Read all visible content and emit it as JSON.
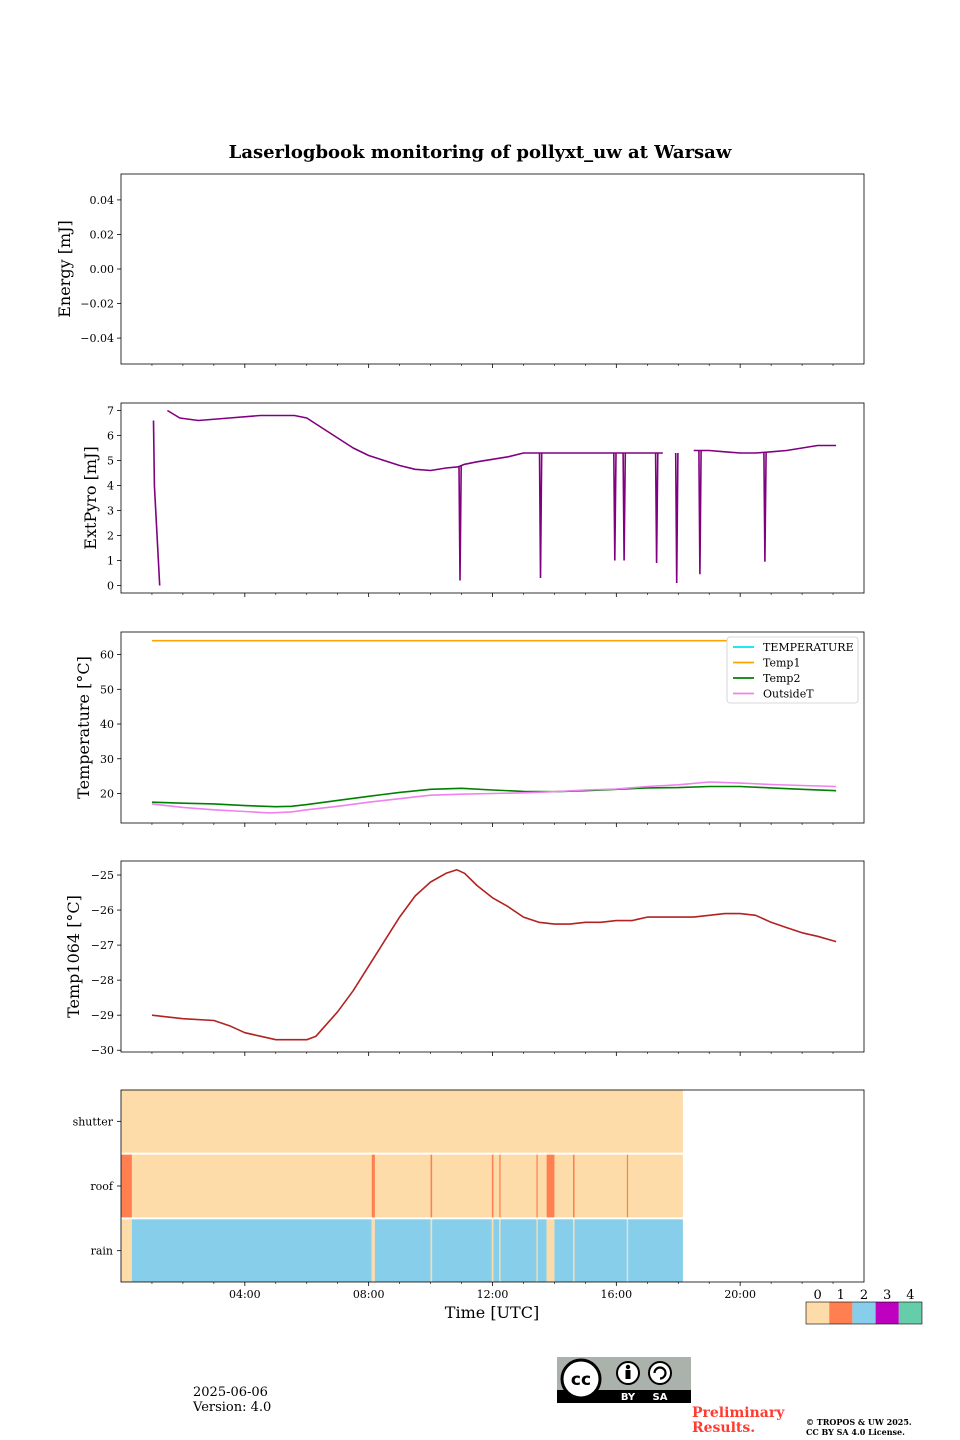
{
  "title": "Laserlogbook monitoring of pollyxt_uw at Warsaw",
  "xaxis": {
    "label": "Time [UTC]",
    "range_hours": [
      0,
      24
    ],
    "ticks": [
      {
        "h": 4,
        "label": "04:00"
      },
      {
        "h": 8,
        "label": "08:00"
      },
      {
        "h": 12,
        "label": "12:00"
      },
      {
        "h": 16,
        "label": "16:00"
      },
      {
        "h": 20,
        "label": "20:00"
      }
    ]
  },
  "chart_data": [
    {
      "type": "line",
      "id": "energy",
      "ylabel": "Energy [mJ]",
      "ylim": [
        -0.055,
        0.055
      ],
      "yticks": [
        {
          "v": 0.04,
          "label": "0.04"
        },
        {
          "v": 0.02,
          "label": "0.02"
        },
        {
          "v": 0.0,
          "label": "0.00"
        },
        {
          "v": -0.02,
          "label": "−0.02"
        },
        {
          "v": -0.04,
          "label": "−0.04"
        }
      ],
      "series": []
    },
    {
      "type": "line",
      "id": "extpyro",
      "ylabel": "ExtPyro [mJ]",
      "ylim": [
        -0.3,
        7.3
      ],
      "yticks": [
        {
          "v": 0,
          "label": "0"
        },
        {
          "v": 1,
          "label": "1"
        },
        {
          "v": 2,
          "label": "2"
        },
        {
          "v": 3,
          "label": "3"
        },
        {
          "v": 4,
          "label": "4"
        },
        {
          "v": 5,
          "label": "5"
        },
        {
          "v": 6,
          "label": "6"
        },
        {
          "v": 7,
          "label": "7"
        }
      ],
      "series": [
        {
          "color": "#800080",
          "x": [
            1.05,
            1.08,
            1.25,
            1.5,
            1.5,
            1.9,
            2.5,
            3.5,
            4.5,
            5.2,
            5.6,
            6.0,
            6.5,
            7.0,
            7.5,
            8.0,
            8.5,
            9.0,
            9.5,
            10.0,
            10.5,
            10.9,
            11.1,
            11.5,
            12.0,
            12.5,
            13.0,
            13.5,
            14.0,
            14.5,
            15.0,
            15.5,
            16.0,
            16.5,
            17.0,
            17.5,
            18.0,
            18.5,
            19.0,
            19.5,
            20.0,
            20.5,
            21.0,
            21.5,
            22.0,
            22.5,
            23.1
          ],
          "y": [
            6.6,
            4.0,
            0.0,
            null,
            7.0,
            6.7,
            6.6,
            6.7,
            6.8,
            6.8,
            6.8,
            6.7,
            6.3,
            5.9,
            5.5,
            5.2,
            5.0,
            4.8,
            4.65,
            4.6,
            4.7,
            4.75,
            4.85,
            4.95,
            5.05,
            5.15,
            5.3,
            5.3,
            5.3,
            5.3,
            5.3,
            5.3,
            5.3,
            5.3,
            5.3,
            5.3,
            null,
            5.4,
            5.4,
            5.35,
            5.3,
            5.3,
            5.35,
            5.4,
            5.5,
            5.6,
            5.6
          ]
        }
      ],
      "dips": [
        {
          "x": 10.95,
          "y": 0.2
        },
        {
          "x": 13.55,
          "y": 0.3
        },
        {
          "x": 15.95,
          "y": 1.0
        },
        {
          "x": 16.25,
          "y": 1.0
        },
        {
          "x": 17.3,
          "y": 0.9
        },
        {
          "x": 17.95,
          "y": 0.1
        },
        {
          "x": 18.7,
          "y": 0.45
        },
        {
          "x": 20.8,
          "y": 0.95
        }
      ]
    },
    {
      "type": "line",
      "id": "temperature",
      "ylabel": "Temperature [°C]",
      "ylim": [
        11.5,
        66.5
      ],
      "yticks": [
        {
          "v": 20,
          "label": "20"
        },
        {
          "v": 30,
          "label": "30"
        },
        {
          "v": 40,
          "label": "40"
        },
        {
          "v": 50,
          "label": "50"
        },
        {
          "v": 60,
          "label": "60"
        }
      ],
      "legend_position": "upper right",
      "series": [
        {
          "name": "TEMPERATURE",
          "color": "#00e5ee",
          "x": [],
          "y": []
        },
        {
          "name": "Temp1",
          "color": "#ffa500",
          "x": [
            1.0,
            23.1
          ],
          "y": [
            64,
            64
          ]
        },
        {
          "name": "Temp2",
          "color": "#008000",
          "x": [
            1.0,
            2.0,
            3.0,
            4.0,
            5.0,
            5.5,
            6.0,
            7.0,
            8.0,
            9.0,
            10.0,
            11.0,
            12.0,
            13.0,
            14.0,
            15.0,
            16.0,
            17.0,
            18.0,
            19.0,
            20.0,
            21.0,
            22.0,
            23.1
          ],
          "y": [
            17.5,
            17.2,
            17.0,
            16.5,
            16.2,
            16.3,
            16.8,
            18.0,
            19.2,
            20.3,
            21.2,
            21.5,
            21.0,
            20.6,
            20.5,
            20.8,
            21.2,
            21.6,
            21.7,
            22.0,
            22.0,
            21.6,
            21.2,
            20.8
          ]
        },
        {
          "name": "OutsideT",
          "color": "#ee82ee",
          "x": [
            1.0,
            2.0,
            3.0,
            4.0,
            4.8,
            5.5,
            6.0,
            7.0,
            8.0,
            9.0,
            10.0,
            11.0,
            12.0,
            13.0,
            14.0,
            15.0,
            16.0,
            17.0,
            18.0,
            19.0,
            20.0,
            21.0,
            22.0,
            23.1
          ],
          "y": [
            17.0,
            16.0,
            15.3,
            14.8,
            14.4,
            14.7,
            15.3,
            16.3,
            17.5,
            18.5,
            19.5,
            19.8,
            20.0,
            20.2,
            20.5,
            21.0,
            21.3,
            22.0,
            22.5,
            23.3,
            23.0,
            22.6,
            22.3,
            22.0
          ]
        }
      ]
    },
    {
      "type": "line",
      "id": "temp1064",
      "ylabel": "Temp1064 [°C]",
      "ylim": [
        -30.05,
        -24.6
      ],
      "yticks": [
        {
          "v": -25,
          "label": "−25"
        },
        {
          "v": -26,
          "label": "−26"
        },
        {
          "v": -27,
          "label": "−27"
        },
        {
          "v": -28,
          "label": "−28"
        },
        {
          "v": -29,
          "label": "−29"
        },
        {
          "v": -30,
          "label": "−30"
        }
      ],
      "series": [
        {
          "color": "#b22222",
          "x": [
            1.0,
            2.0,
            3.0,
            3.5,
            4.0,
            4.5,
            5.0,
            5.5,
            6.0,
            6.3,
            6.6,
            7.0,
            7.5,
            8.0,
            8.5,
            9.0,
            9.5,
            10.0,
            10.5,
            10.85,
            11.1,
            11.5,
            12.0,
            12.5,
            13.0,
            13.5,
            14.0,
            14.5,
            15.0,
            15.5,
            16.0,
            16.5,
            17.0,
            17.5,
            18.0,
            18.5,
            19.0,
            19.5,
            20.0,
            20.5,
            21.0,
            21.5,
            22.0,
            22.5,
            23.1
          ],
          "y": [
            -29.0,
            -29.1,
            -29.15,
            -29.3,
            -29.5,
            -29.6,
            -29.7,
            -29.7,
            -29.7,
            -29.6,
            -29.3,
            -28.9,
            -28.3,
            -27.6,
            -26.9,
            -26.2,
            -25.6,
            -25.2,
            -24.95,
            -24.85,
            -24.95,
            -25.3,
            -25.65,
            -25.9,
            -26.2,
            -26.35,
            -26.4,
            -26.4,
            -26.35,
            -26.35,
            -26.3,
            -26.3,
            -26.2,
            -26.2,
            -26.2,
            -26.2,
            -26.15,
            -26.1,
            -26.1,
            -26.15,
            -26.35,
            -26.5,
            -26.65,
            -26.75,
            -26.9
          ]
        }
      ]
    },
    {
      "type": "heatmap",
      "id": "flags",
      "rows": [
        "shutter",
        "roof",
        "rain"
      ],
      "colorbar": {
        "labels": [
          "0",
          "1",
          "2",
          "3",
          "4"
        ],
        "colors": [
          "#fddcaa",
          "#ff7f50",
          "#87ceeb",
          "#c000c0",
          "#66cdaa"
        ]
      },
      "shutter_segments": [
        {
          "from": 0.0,
          "to": 18.15,
          "value": 0
        }
      ],
      "roof_flags": [
        {
          "from": 0.0,
          "to": 0.35
        },
        {
          "from": 8.1,
          "to": 8.2
        },
        {
          "from": 10.0,
          "to": 10.05
        },
        {
          "from": 11.98,
          "to": 12.03
        },
        {
          "from": 12.22,
          "to": 12.26
        },
        {
          "from": 13.42,
          "to": 13.46
        },
        {
          "from": 13.75,
          "to": 14.0
        },
        {
          "from": 14.6,
          "to": 14.65
        },
        {
          "from": 16.34,
          "to": 16.38
        }
      ],
      "roof_end": 18.15,
      "rain_segments": [
        {
          "from": 0.0,
          "to": 0.35,
          "value": 0
        },
        {
          "from": 0.35,
          "to": 8.1,
          "value": 2
        },
        {
          "from": 8.1,
          "to": 8.2,
          "value": 0
        },
        {
          "from": 8.2,
          "to": 10.0,
          "value": 2
        },
        {
          "from": 10.0,
          "to": 10.05,
          "value": 0
        },
        {
          "from": 10.05,
          "to": 11.98,
          "value": 2
        },
        {
          "from": 11.98,
          "to": 12.03,
          "value": 0
        },
        {
          "from": 12.03,
          "to": 12.22,
          "value": 2
        },
        {
          "from": 12.22,
          "to": 12.26,
          "value": 0
        },
        {
          "from": 12.26,
          "to": 13.42,
          "value": 2
        },
        {
          "from": 13.42,
          "to": 13.46,
          "value": 0
        },
        {
          "from": 13.46,
          "to": 13.75,
          "value": 2
        },
        {
          "from": 13.75,
          "to": 14.0,
          "value": 0
        },
        {
          "from": 14.0,
          "to": 14.6,
          "value": 2
        },
        {
          "from": 14.6,
          "to": 14.65,
          "value": 0
        },
        {
          "from": 14.65,
          "to": 16.34,
          "value": 2
        },
        {
          "from": 16.34,
          "to": 16.38,
          "value": 0
        },
        {
          "from": 16.38,
          "to": 18.15,
          "value": 2
        }
      ]
    }
  ],
  "footer": {
    "date": "2025-06-06",
    "version": "Version: 4.0",
    "preliminary_line1": "Preliminary",
    "preliminary_line2": "Results.",
    "copyright_line1": "© TROPOS & UW 2025.",
    "copyright_line2": "CC BY SA 4.0 License.",
    "cc_badge": {
      "cc": "cc",
      "by": "BY",
      "sa": "SA"
    }
  }
}
